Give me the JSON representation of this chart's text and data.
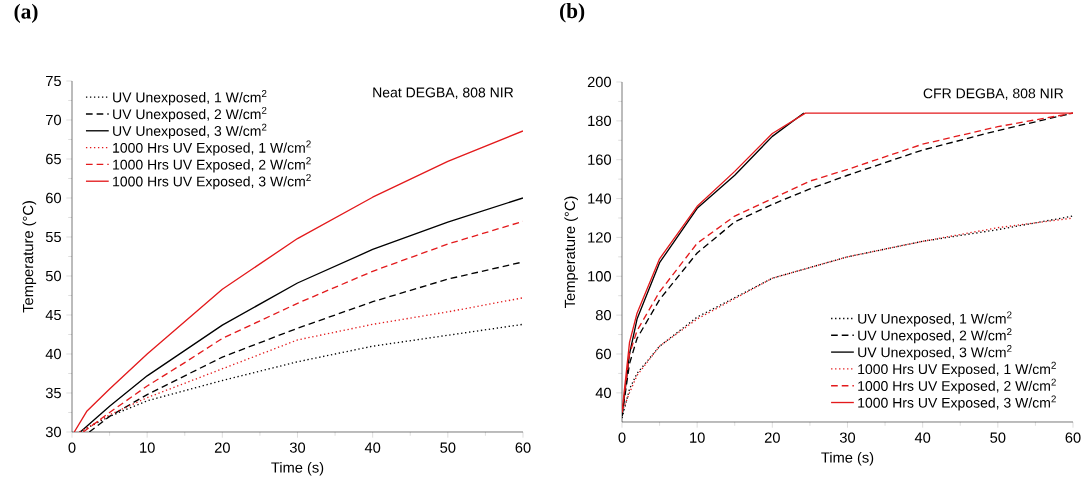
{
  "chart_data": [
    {
      "type": "line",
      "title": "(a)",
      "xlabel": "Time (s)",
      "ylabel": "Temperature (°C)",
      "annotations": [
        "Neat DEGBA, 808 NIR"
      ],
      "legend": "top left",
      "xlim": [
        0,
        60
      ],
      "ylim": [
        30,
        75
      ],
      "xticks": [
        0,
        10,
        20,
        30,
        40,
        50,
        60
      ],
      "yticks": [
        30,
        35,
        40,
        45,
        50,
        55,
        60,
        65,
        70,
        75
      ],
      "series": [
        {
          "name": "UV Unexposed, 1 W/cm$^{2}$",
          "color": "#000000",
          "line_style": "dotted",
          "x": [
            1,
            5,
            10,
            20,
            30,
            40,
            50,
            60
          ],
          "values": [
            30,
            32.0,
            34.0,
            36.6,
            39.0,
            41.0,
            42.4,
            43.8
          ]
        },
        {
          "name": "UV Unexposed, 2 W/cm$^{2}$",
          "color": "#000000",
          "line_style": "dashed",
          "x": [
            2.3,
            5,
            10,
            15,
            20,
            30,
            40,
            50,
            60
          ],
          "values": [
            30,
            32.0,
            34.8,
            37.2,
            39.6,
            43.3,
            46.7,
            49.6,
            51.8
          ]
        },
        {
          "name": "UV Unexposed, 3 W/cm$^{2}$",
          "color": "#000000",
          "line_style": "solid",
          "x": [
            1.1,
            5,
            10,
            20,
            30,
            40,
            50,
            60
          ],
          "values": [
            30,
            33.3,
            37.2,
            43.7,
            49.1,
            53.4,
            56.9,
            60.0
          ]
        },
        {
          "name": "1000 Hrs UV Exposed, 1 W/cm$^{2}$",
          "color": "#e31a1c",
          "line_style": "dotted",
          "x": [
            1,
            5,
            10,
            20,
            30,
            40,
            50,
            60
          ],
          "values": [
            30,
            32.2,
            34.4,
            38.1,
            41.8,
            43.8,
            45.4,
            47.2
          ]
        },
        {
          "name": "1000 Hrs UV Exposed, 2 W/cm$^{2}$",
          "color": "#e31a1c",
          "line_style": "dashed",
          "x": [
            1.5,
            5,
            10,
            15,
            20,
            30,
            40,
            50,
            60
          ],
          "values": [
            30,
            32.5,
            35.9,
            38.9,
            42.0,
            46.5,
            50.6,
            54.1,
            57.0
          ]
        },
        {
          "name": "1000 Hrs UV Exposed, 3 W/cm$^{2}$",
          "color": "#e31a1c",
          "line_style": "solid",
          "x": [
            0.3,
            2,
            5,
            10,
            20,
            30,
            40,
            50,
            60
          ],
          "values": [
            30,
            32.7,
            35.5,
            40.0,
            48.3,
            54.8,
            60.1,
            64.7,
            68.6
          ]
        }
      ]
    },
    {
      "type": "line",
      "title": "(b)",
      "xlabel": "Time (s)",
      "ylabel": "Temperature (°C)",
      "annotations": [
        "CFR DEGBA, 808 NIR"
      ],
      "legend": "bottom right",
      "xlim": [
        0,
        60
      ],
      "ylim": [
        25,
        200
      ],
      "xticks": [
        0,
        10,
        20,
        30,
        40,
        50,
        60
      ],
      "yticks": [
        40,
        60,
        80,
        100,
        120,
        140,
        160,
        180,
        200
      ],
      "series": [
        {
          "name": "UV Unexposed, 1 W/cm$^{2}$",
          "color": "#000000",
          "line_style": "dotted",
          "x": [
            0,
            1,
            2,
            5,
            10,
            20,
            30,
            40,
            50,
            60
          ],
          "values": [
            27,
            42,
            50,
            64,
            79,
            99,
            110,
            118,
            124,
            131
          ]
        },
        {
          "name": "UV Unexposed, 2 W/cm$^{2}$",
          "color": "#000000",
          "line_style": "dashed",
          "x": [
            0,
            1,
            2,
            5,
            10,
            15,
            20,
            25,
            30,
            40,
            50,
            60
          ],
          "values": [
            28,
            55,
            68,
            88,
            112,
            128,
            137,
            145,
            152,
            165,
            175,
            184
          ]
        },
        {
          "name": "UV Unexposed, 3 W/cm$^{2}$",
          "color": "#000000",
          "line_style": "solid",
          "x": [
            0,
            1,
            2,
            5,
            10,
            15,
            20,
            24.2
          ],
          "values": [
            28,
            60,
            78,
            107,
            135,
            152,
            172,
            184
          ]
        },
        {
          "name": "1000 Hrs UV Exposed, 1 W/cm$^{2}$",
          "color": "#e31a1c",
          "line_style": "dotted",
          "x": [
            0,
            1,
            2,
            5,
            10,
            20,
            30,
            40,
            50,
            60
          ],
          "values": [
            30,
            40,
            49,
            64,
            78,
            99,
            110,
            118,
            125,
            130
          ]
        },
        {
          "name": "1000 Hrs UV Exposed, 2 W/cm$^{2}$",
          "color": "#e31a1c",
          "line_style": "dashed",
          "x": [
            0,
            1,
            2,
            5,
            10,
            15,
            20,
            25,
            30,
            40,
            50,
            60
          ],
          "values": [
            30,
            60,
            72,
            92,
            117,
            131,
            140,
            149,
            155,
            168,
            177,
            184
          ]
        },
        {
          "name": "1000 Hrs UV Exposed, 3 W/cm$^{2}$",
          "color": "#e31a1c",
          "line_style": "solid",
          "x": [
            0,
            1,
            2,
            5,
            10,
            15,
            20,
            24.4,
            60
          ],
          "values": [
            30,
            66,
            81,
            109,
            136,
            154,
            173.5,
            184,
            184
          ]
        }
      ]
    }
  ]
}
